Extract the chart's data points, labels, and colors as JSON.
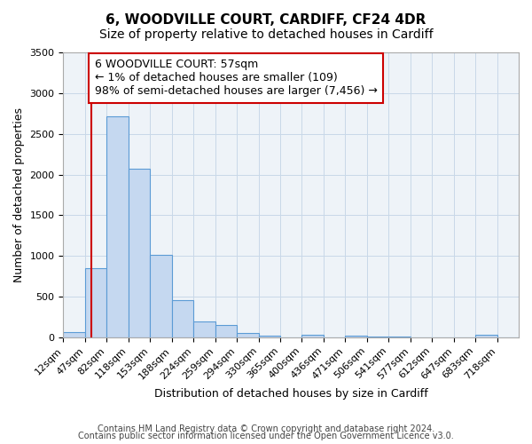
{
  "title": "6, WOODVILLE COURT, CARDIFF, CF24 4DR",
  "subtitle": "Size of property relative to detached houses in Cardiff",
  "xlabel": "Distribution of detached houses by size in Cardiff",
  "ylabel": "Number of detached properties",
  "bin_labels": [
    "12sqm",
    "47sqm",
    "82sqm",
    "118sqm",
    "153sqm",
    "188sqm",
    "224sqm",
    "259sqm",
    "294sqm",
    "330sqm",
    "365sqm",
    "400sqm",
    "436sqm",
    "471sqm",
    "506sqm",
    "541sqm",
    "577sqm",
    "612sqm",
    "647sqm",
    "683sqm",
    "718sqm"
  ],
  "bar_values": [
    60,
    850,
    2720,
    2070,
    1010,
    455,
    200,
    155,
    55,
    25,
    0,
    35,
    0,
    25,
    15,
    10,
    0,
    0,
    0,
    35,
    0
  ],
  "bar_color": "#c5d8f0",
  "bar_edge_color": "#5b9bd5",
  "ylim": [
    0,
    3500
  ],
  "yticks": [
    0,
    500,
    1000,
    1500,
    2000,
    2500,
    3000,
    3500
  ],
  "annotation_text": "6 WOODVILLE COURT: 57sqm\n← 1% of detached houses are smaller (109)\n98% of semi-detached houses are larger (7,456) →",
  "annotation_box_color": "#ffffff",
  "annotation_box_edge_color": "#cc0000",
  "footer_line1": "Contains HM Land Registry data © Crown copyright and database right 2024.",
  "footer_line2": "Contains public sector information licensed under the Open Government Licence v3.0.",
  "bg_color": "#ffffff",
  "plot_bg_color": "#eef3f8",
  "grid_color": "#c8d8e8",
  "red_line_color": "#cc0000",
  "title_fontsize": 11,
  "subtitle_fontsize": 10,
  "axis_label_fontsize": 9,
  "tick_fontsize": 8,
  "annotation_fontsize": 9,
  "footer_fontsize": 7
}
